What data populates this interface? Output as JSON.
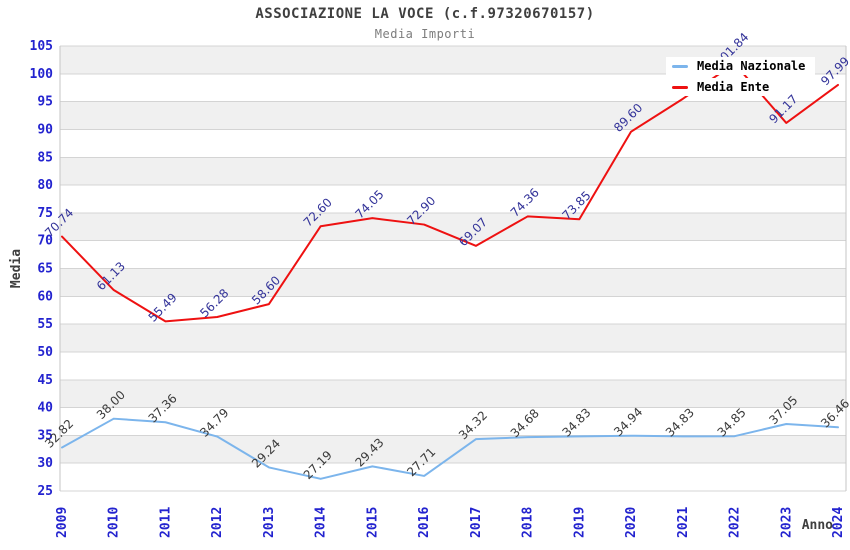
{
  "header": {
    "title": "ASSOCIAZIONE LA VOCE (c.f.97320670157)",
    "subtitle": "Media Importi"
  },
  "chart_data": {
    "type": "line",
    "x": [
      "2009",
      "2010",
      "2011",
      "2012",
      "2013",
      "2014",
      "2015",
      "2016",
      "2017",
      "2018",
      "2019",
      "2020",
      "2021",
      "2022",
      "2023",
      "2024"
    ],
    "series": [
      {
        "name": "Media Nazionale",
        "color": "#7cb5ec",
        "label_color": "#3a3a3a",
        "values": [
          32.82,
          38.0,
          37.36,
          34.79,
          29.24,
          27.19,
          29.43,
          27.71,
          34.32,
          34.68,
          34.83,
          34.94,
          34.83,
          34.85,
          37.05,
          36.46
        ],
        "labels": [
          "32.82",
          "38.00",
          "37.36",
          "34.79",
          "29.24",
          "27.19",
          "29.43",
          "27.71",
          "34.32",
          "34.68",
          "34.83",
          "34.94",
          "34.83",
          "34.85",
          "37.05",
          "36.46"
        ]
      },
      {
        "name": "Media Ente",
        "color": "#ee1111",
        "label_color": "#333399",
        "values": [
          70.74,
          61.13,
          55.49,
          56.28,
          58.6,
          72.6,
          74.05,
          72.9,
          69.07,
          74.36,
          73.85,
          89.6,
          95.5,
          101.84,
          91.17,
          97.99
        ],
        "labels": [
          "70.74",
          "61.13",
          "55.49",
          "56.28",
          "58.60",
          "72.60",
          "74.05",
          "72.90",
          "69.07",
          "74.36",
          "73.85",
          "89.60",
          null,
          "101.84",
          "91.17",
          "97.99"
        ]
      }
    ],
    "title": "ASSOCIAZIONE LA VOCE (c.f.97320670157)",
    "subtitle": "Media Importi",
    "xlabel": "Anno",
    "ylabel": "Media",
    "ylim": [
      25,
      105
    ],
    "ytick_step": 5,
    "legend_position": "top-right",
    "grid": "on",
    "band_fill": "#f0f0f0",
    "grid_color": "#d4d4d4",
    "axis_line_color": "#c6c6c6",
    "tick_label_color": "#2323cf",
    "axis_title_color": "#3f3f3f"
  }
}
